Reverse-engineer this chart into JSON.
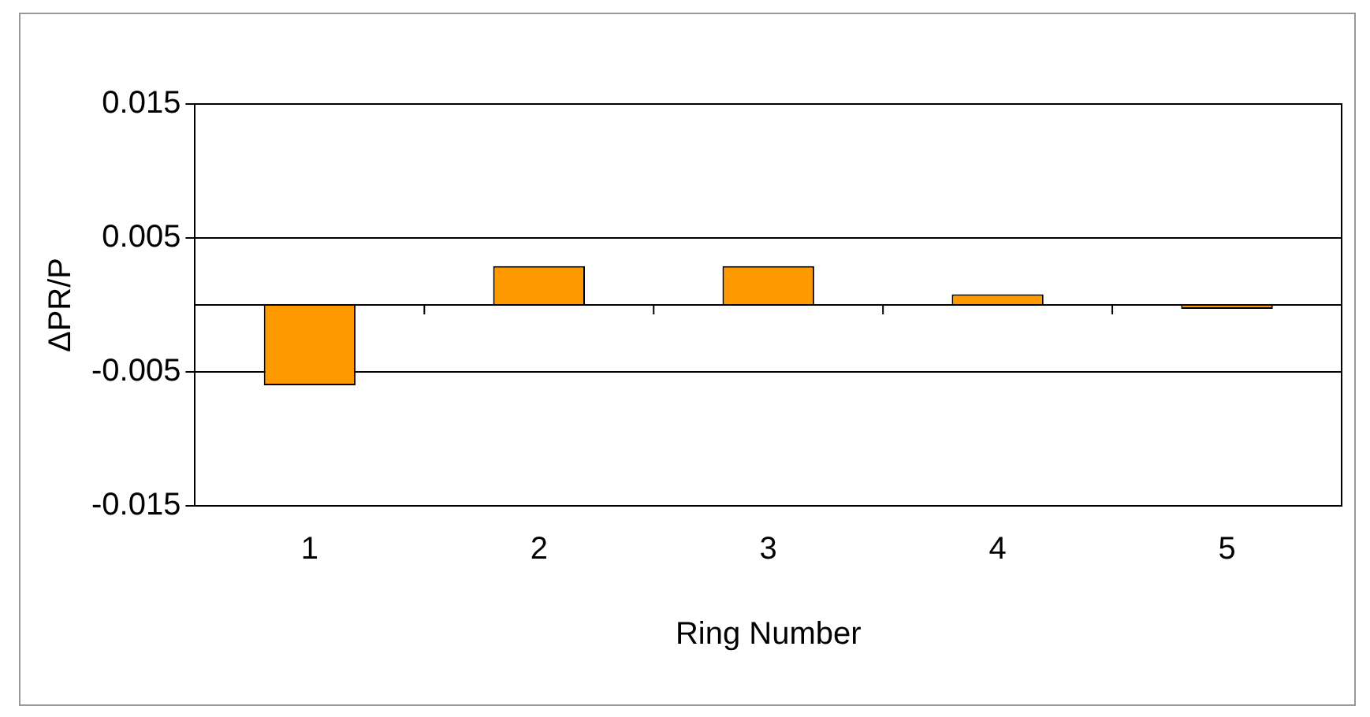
{
  "chart_data": {
    "type": "bar",
    "xlabel": "Ring Number",
    "ylabel": "ΔPR/P",
    "categories": [
      "1",
      "2",
      "3",
      "4",
      "5"
    ],
    "values": [
      -0.006,
      0.0029,
      0.0029,
      0.0008,
      -0.0003
    ],
    "color": "#ff9900",
    "ylim": [
      -0.015,
      0.015
    ],
    "yticks": [
      -0.015,
      -0.005,
      0.005,
      0.015
    ],
    "ref_lines": [
      {
        "axis": "y",
        "value": 0
      }
    ],
    "grid": "y",
    "legend": false
  }
}
